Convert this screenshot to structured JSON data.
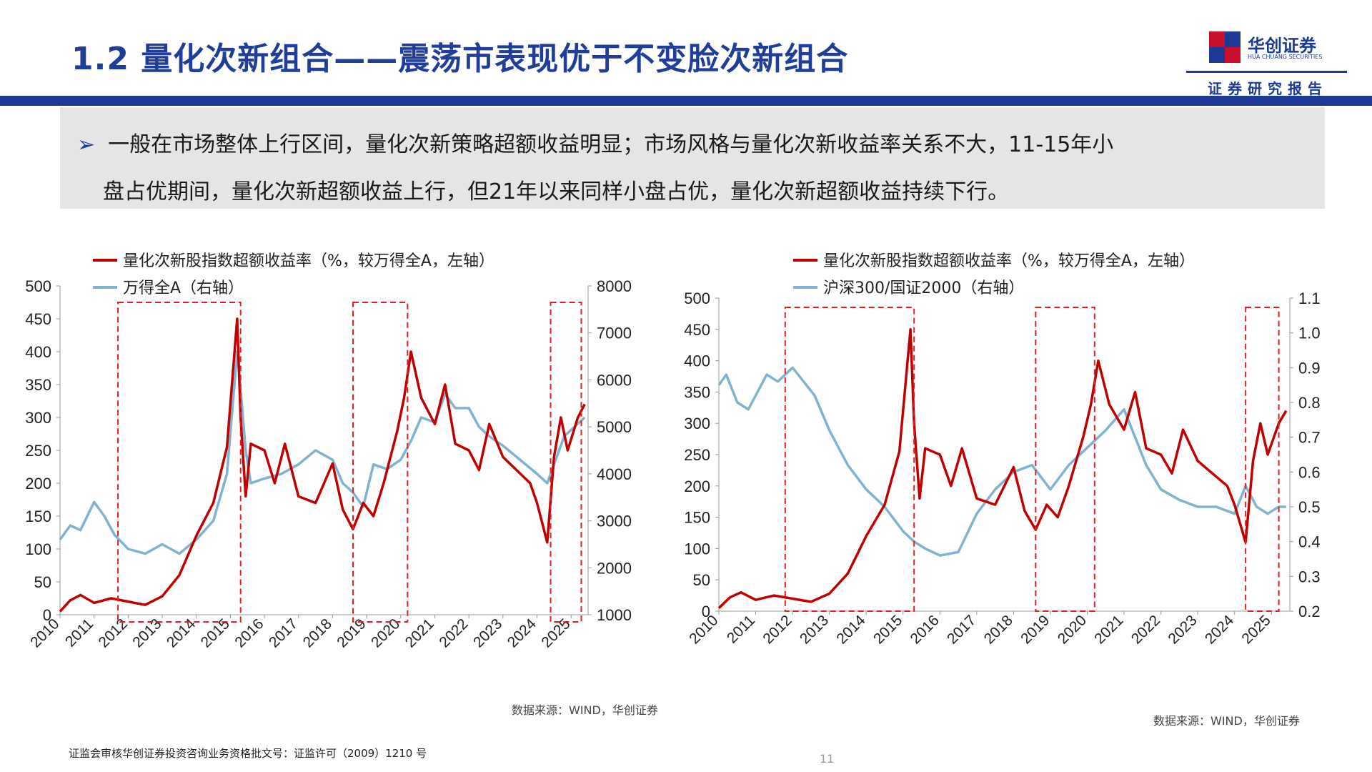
{
  "header": {
    "title": "1.2 量化次新组合——震荡市表现优于不变脸次新组合",
    "logo_name": "华创证券",
    "logo_en": "HUA CHUANG SECURITIES",
    "logo_sub": "证券研究报告",
    "brand_color": "#1c3a94",
    "logo_red": "#c8102e"
  },
  "bullet": {
    "mark": "➢",
    "line1": "一般在市场整体上行区间，量化次新策略超额收益明显；市场风格与量化次新收益率关系不大，11-15年小",
    "line2": "盘占优期间，量化次新超额收益上行，但21年以来同样小盘占优，量化次新超额收益持续下行。"
  },
  "chart_data": [
    {
      "type": "line",
      "x_ticks": [
        "2010",
        "2011",
        "2012",
        "2013",
        "2014",
        "2015",
        "2016",
        "2017",
        "2018",
        "2019",
        "2020",
        "2021",
        "2022",
        "2023",
        "2024",
        "2025"
      ],
      "left_axis": {
        "ticks": [
          "0",
          "50",
          "100",
          "150",
          "200",
          "250",
          "300",
          "350",
          "400",
          "450",
          "500"
        ],
        "ylim": [
          0,
          500
        ]
      },
      "right_axis": {
        "ticks": [
          "1000",
          "2000",
          "3000",
          "4000",
          "5000",
          "6000",
          "7000",
          "8000"
        ],
        "ylim": [
          1000,
          8000
        ]
      },
      "series": [
        {
          "name": "量化次新股指数超额收益率（%，较万得全A，左轴）",
          "axis": "left",
          "color": "#c00000",
          "x": [
            2010.0,
            2010.3,
            2010.6,
            2011.0,
            2011.5,
            2012.0,
            2012.5,
            2013.0,
            2013.5,
            2014.0,
            2014.5,
            2014.9,
            2015.2,
            2015.3,
            2015.45,
            2015.6,
            2016.0,
            2016.3,
            2016.6,
            2017.0,
            2017.5,
            2018.0,
            2018.3,
            2018.6,
            2018.9,
            2019.2,
            2019.5,
            2019.9,
            2020.1,
            2020.3,
            2020.6,
            2021.0,
            2021.3,
            2021.6,
            2022.0,
            2022.3,
            2022.6,
            2023.0,
            2023.4,
            2023.8,
            2024.0,
            2024.3,
            2024.5,
            2024.7,
            2024.9,
            2025.2,
            2025.4
          ],
          "y": [
            5,
            22,
            30,
            18,
            25,
            20,
            15,
            28,
            60,
            120,
            170,
            255,
            450,
            300,
            180,
            260,
            250,
            200,
            260,
            180,
            170,
            230,
            160,
            130,
            170,
            150,
            200,
            280,
            330,
            400,
            330,
            290,
            350,
            260,
            250,
            220,
            290,
            240,
            220,
            200,
            170,
            110,
            240,
            300,
            250,
            300,
            320
          ]
        },
        {
          "name": "万得全A（右轴）",
          "axis": "right",
          "color": "#7fb3d1",
          "x": [
            2010.0,
            2010.3,
            2010.6,
            2011.0,
            2011.3,
            2011.6,
            2012.0,
            2012.5,
            2013.0,
            2013.5,
            2014.0,
            2014.5,
            2014.9,
            2015.2,
            2015.3,
            2015.45,
            2015.6,
            2016.0,
            2016.5,
            2017.0,
            2017.5,
            2018.0,
            2018.3,
            2018.6,
            2018.9,
            2019.2,
            2019.6,
            2020.0,
            2020.3,
            2020.6,
            2021.0,
            2021.3,
            2021.6,
            2022.0,
            2022.3,
            2022.6,
            2023.0,
            2023.5,
            2024.0,
            2024.3,
            2024.5,
            2024.8,
            2025.1,
            2025.4
          ],
          "y": [
            2600,
            2900,
            2800,
            3400,
            3100,
            2700,
            2400,
            2300,
            2500,
            2300,
            2600,
            3000,
            4000,
            6600,
            5800,
            4500,
            3800,
            3900,
            4000,
            4200,
            4500,
            4300,
            3800,
            3600,
            3300,
            4200,
            4100,
            4300,
            4700,
            5200,
            5100,
            5700,
            5400,
            5400,
            5000,
            4800,
            4600,
            4300,
            4000,
            3800,
            4200,
            4800,
            5000,
            5200
          ]
        }
      ],
      "highlight_periods": [
        [
          2011.7,
          2015.3
        ],
        [
          2018.6,
          2020.2
        ],
        [
          2024.4,
          2025.3
        ]
      ],
      "source": "数据来源：WIND，华创证券"
    },
    {
      "type": "line",
      "x_ticks": [
        "2010",
        "2011",
        "2012",
        "2013",
        "2014",
        "2015",
        "2016",
        "2017",
        "2018",
        "2019",
        "2020",
        "2021",
        "2022",
        "2023",
        "2024",
        "2025"
      ],
      "left_axis": {
        "ticks": [
          "0",
          "50",
          "100",
          "150",
          "200",
          "250",
          "300",
          "350",
          "400",
          "450",
          "500"
        ],
        "ylim": [
          0,
          500
        ]
      },
      "right_axis": {
        "ticks": [
          "0.2",
          "0.3",
          "0.4",
          "0.5",
          "0.6",
          "0.7",
          "0.8",
          "0.9",
          "1.0",
          "1.1"
        ],
        "ylim": [
          0.2,
          1.1
        ]
      },
      "series": [
        {
          "name": "量化次新股指数超额收益率（%，较万得全A，左轴）",
          "axis": "left",
          "color": "#c00000",
          "x": [
            2010.0,
            2010.3,
            2010.6,
            2011.0,
            2011.5,
            2012.0,
            2012.5,
            2013.0,
            2013.5,
            2014.0,
            2014.5,
            2014.9,
            2015.2,
            2015.3,
            2015.45,
            2015.6,
            2016.0,
            2016.3,
            2016.6,
            2017.0,
            2017.5,
            2018.0,
            2018.3,
            2018.6,
            2018.9,
            2019.2,
            2019.5,
            2019.9,
            2020.1,
            2020.3,
            2020.6,
            2021.0,
            2021.3,
            2021.6,
            2022.0,
            2022.3,
            2022.6,
            2023.0,
            2023.4,
            2023.8,
            2024.0,
            2024.3,
            2024.5,
            2024.7,
            2024.9,
            2025.2,
            2025.4
          ],
          "y": [
            5,
            22,
            30,
            18,
            25,
            20,
            15,
            28,
            60,
            120,
            170,
            255,
            450,
            300,
            180,
            260,
            250,
            200,
            260,
            180,
            170,
            230,
            160,
            130,
            170,
            150,
            200,
            280,
            330,
            400,
            330,
            290,
            350,
            260,
            250,
            220,
            290,
            240,
            220,
            200,
            170,
            110,
            240,
            300,
            250,
            300,
            320
          ]
        },
        {
          "name": "沪深300/国证2000（右轴）",
          "axis": "right",
          "color": "#7fb3d1",
          "x": [
            2010.0,
            2010.2,
            2010.5,
            2010.8,
            2011.0,
            2011.3,
            2011.6,
            2012.0,
            2012.3,
            2012.6,
            2013.0,
            2013.5,
            2014.0,
            2014.5,
            2015.0,
            2015.3,
            2015.6,
            2016.0,
            2016.5,
            2017.0,
            2017.5,
            2018.0,
            2018.5,
            2019.0,
            2019.5,
            2020.0,
            2020.5,
            2021.0,
            2021.3,
            2021.6,
            2022.0,
            2022.5,
            2023.0,
            2023.5,
            2024.0,
            2024.3,
            2024.6,
            2024.9,
            2025.2,
            2025.4
          ],
          "y": [
            0.85,
            0.88,
            0.8,
            0.78,
            0.82,
            0.88,
            0.86,
            0.9,
            0.86,
            0.82,
            0.72,
            0.62,
            0.55,
            0.5,
            0.43,
            0.4,
            0.38,
            0.36,
            0.37,
            0.48,
            0.55,
            0.6,
            0.62,
            0.55,
            0.62,
            0.67,
            0.72,
            0.78,
            0.7,
            0.62,
            0.55,
            0.52,
            0.5,
            0.5,
            0.48,
            0.56,
            0.5,
            0.48,
            0.5,
            0.5
          ]
        }
      ],
      "highlight_periods": [
        [
          2011.8,
          2015.3
        ],
        [
          2018.6,
          2020.2
        ],
        [
          2024.3,
          2025.2
        ]
      ],
      "source": "数据来源：WIND，华创证券"
    }
  ],
  "footer": {
    "license": "证监会审核华创证券投资咨询业务资格批文号：证监许可（2009）1210 号",
    "page": "11"
  }
}
